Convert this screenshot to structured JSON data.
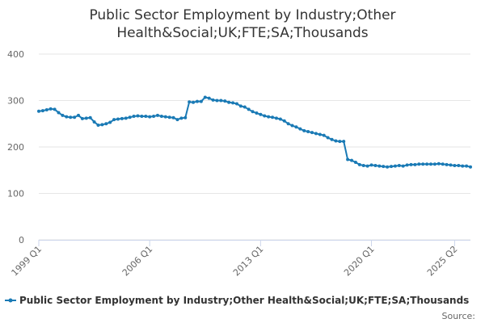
{
  "chart_data": {
    "type": "line",
    "title_line1": "Public Sector Employment by Industry;Other",
    "title_line2": "Health&Social;UK;FTE;SA;Thousands",
    "xlabel": "",
    "ylabel": "",
    "ylim": [
      0,
      400
    ],
    "yticks": [
      0,
      100,
      200,
      300,
      400
    ],
    "xticks": [
      {
        "label": "1999 Q1",
        "index": 0
      },
      {
        "label": "2006 Q1",
        "index": 28
      },
      {
        "label": "2013 Q1",
        "index": 56
      },
      {
        "label": "2020 Q1",
        "index": 84
      },
      {
        "label": "2025 Q2",
        "index": 105
      }
    ],
    "grid": true,
    "legend_position": "bottom",
    "source_label": "Source:",
    "colors": {
      "series": "#1a7ab5",
      "grid": "#e6e6e6",
      "axis": "#ccd6eb"
    },
    "series": [
      {
        "name": "Public Sector Employment by Industry;Other Health&Social;UK;FTE;SA;Thousands",
        "values": [
          277,
          278,
          280,
          282,
          281,
          274,
          268,
          265,
          264,
          264,
          268,
          261,
          262,
          263,
          254,
          247,
          248,
          250,
          253,
          259,
          260,
          261,
          262,
          264,
          266,
          267,
          266,
          266,
          265,
          266,
          268,
          266,
          265,
          264,
          263,
          259,
          262,
          263,
          297,
          296,
          298,
          298,
          307,
          305,
          301,
          300,
          300,
          299,
          296,
          295,
          293,
          288,
          286,
          281,
          276,
          273,
          270,
          267,
          265,
          264,
          262,
          260,
          256,
          250,
          246,
          243,
          239,
          235,
          233,
          231,
          229,
          227,
          225,
          220,
          216,
          213,
          212,
          212,
          173,
          171,
          167,
          162,
          160,
          159,
          161,
          160,
          159,
          158,
          157,
          158,
          159,
          160,
          159,
          161,
          162,
          162,
          163,
          163,
          163,
          163,
          163,
          164,
          163,
          162,
          161,
          160,
          160,
          159,
          159,
          157
        ]
      }
    ]
  }
}
